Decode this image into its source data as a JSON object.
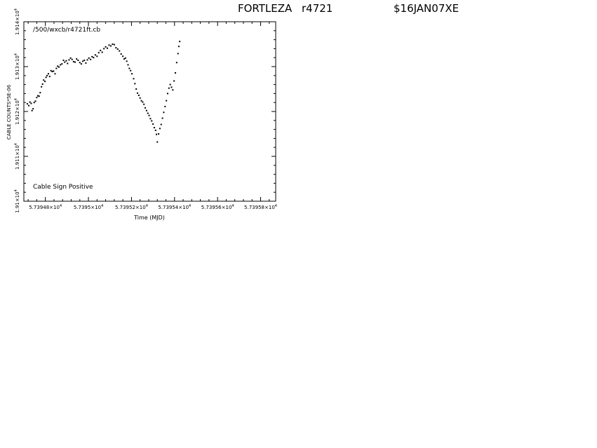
{
  "header": {
    "station": "FORTLEZA",
    "run": "r4721",
    "session": "$16JAN07XE"
  },
  "chart_data": {
    "type": "scatter",
    "title": "",
    "file_label": "/500/wxcb/r4721ft.cb",
    "annotation": "Cable Sign Positive",
    "xlabel": "Time (MJD)",
    "ylabel": "CABLE COUNTS*5E-06",
    "xlim": [
      57394.7,
      57395.87
    ],
    "ylim": [
      19100,
      19140
    ],
    "x_ticks": [
      {
        "value": 57394.8,
        "mantissa": "5.73948×10",
        "exp": "4"
      },
      {
        "value": 57395.0,
        "mantissa": "5.7395×10",
        "exp": "4"
      },
      {
        "value": 57395.2,
        "mantissa": "5.73952×10",
        "exp": "4"
      },
      {
        "value": 57395.4,
        "mantissa": "5.73954×10",
        "exp": "4"
      },
      {
        "value": 57395.6,
        "mantissa": "5.73956×10",
        "exp": "4"
      },
      {
        "value": 57395.8,
        "mantissa": "5.73958×10",
        "exp": "4"
      }
    ],
    "y_ticks": [
      {
        "value": 19100,
        "mantissa": "1.91×10",
        "exp": "4"
      },
      {
        "value": 19110,
        "mantissa": "1.911×10",
        "exp": "4"
      },
      {
        "value": 19120,
        "mantissa": "1.912×10",
        "exp": "4"
      },
      {
        "value": 19130,
        "mantissa": "1.913×10",
        "exp": "4"
      },
      {
        "value": 19140,
        "mantissa": "1.914×10",
        "exp": "4"
      }
    ],
    "grid": false,
    "series": [
      {
        "marker_color": "#000000",
        "points": [
          [
            57394.716,
            19121.7
          ],
          [
            57394.723,
            19121.3
          ],
          [
            57394.728,
            19122.1
          ],
          [
            57394.734,
            19121.8
          ],
          [
            57394.738,
            19120.2
          ],
          [
            57394.743,
            19120.6
          ],
          [
            57394.748,
            19122.0
          ],
          [
            57394.754,
            19122.3
          ],
          [
            57394.76,
            19123.1
          ],
          [
            57394.765,
            19123.5
          ],
          [
            57394.771,
            19123.4
          ],
          [
            57394.776,
            19124.2
          ],
          [
            57394.782,
            19125.5
          ],
          [
            57394.787,
            19126.1
          ],
          [
            57394.792,
            19127.0
          ],
          [
            57394.798,
            19126.7
          ],
          [
            57394.803,
            19127.6
          ],
          [
            57394.808,
            19128.0
          ],
          [
            57394.814,
            19128.4
          ],
          [
            57394.82,
            19127.8
          ],
          [
            57394.826,
            19129.1
          ],
          [
            57394.832,
            19128.9
          ],
          [
            57394.838,
            19129.0
          ],
          [
            57394.845,
            19128.4
          ],
          [
            57394.851,
            19129.6
          ],
          [
            57394.857,
            19130.1
          ],
          [
            57394.863,
            19129.9
          ],
          [
            57394.87,
            19130.4
          ],
          [
            57394.877,
            19130.6
          ],
          [
            57394.884,
            19131.4
          ],
          [
            57394.89,
            19131.0
          ],
          [
            57394.897,
            19131.3
          ],
          [
            57394.903,
            19130.7
          ],
          [
            57394.91,
            19131.5
          ],
          [
            57394.917,
            19131.9
          ],
          [
            57394.924,
            19131.6
          ],
          [
            57394.931,
            19131.1
          ],
          [
            57394.938,
            19131.0
          ],
          [
            57394.945,
            19131.7
          ],
          [
            57394.952,
            19131.4
          ],
          [
            57394.96,
            19130.9
          ],
          [
            57394.967,
            19130.6
          ],
          [
            57394.974,
            19131.2
          ],
          [
            57394.981,
            19131.4
          ],
          [
            57394.988,
            19130.8
          ],
          [
            57394.995,
            19131.5
          ],
          [
            57395.002,
            19131.9
          ],
          [
            57395.01,
            19131.6
          ],
          [
            57395.017,
            19132.2
          ],
          [
            57395.024,
            19132.0
          ],
          [
            57395.032,
            19132.6
          ],
          [
            57395.04,
            19132.3
          ],
          [
            57395.048,
            19133.1
          ],
          [
            57395.056,
            19133.6
          ],
          [
            57395.064,
            19133.2
          ],
          [
            57395.072,
            19134.0
          ],
          [
            57395.08,
            19134.4
          ],
          [
            57395.088,
            19134.1
          ],
          [
            57395.096,
            19134.8
          ],
          [
            57395.104,
            19134.6
          ],
          [
            57395.112,
            19135.0
          ],
          [
            57395.12,
            19134.9
          ],
          [
            57395.128,
            19134.2
          ],
          [
            57395.136,
            19133.9
          ],
          [
            57395.144,
            19133.5
          ],
          [
            57395.152,
            19132.8
          ],
          [
            57395.16,
            19132.3
          ],
          [
            57395.166,
            19131.7
          ],
          [
            57395.172,
            19131.9
          ],
          [
            57395.178,
            19131.2
          ],
          [
            57395.184,
            19130.4
          ],
          [
            57395.19,
            19129.6
          ],
          [
            57395.196,
            19129.1
          ],
          [
            57395.202,
            19128.4
          ],
          [
            57395.21,
            19127.3
          ],
          [
            57395.216,
            19126.2
          ],
          [
            57395.222,
            19125.0
          ],
          [
            57395.228,
            19124.1
          ],
          [
            57395.234,
            19123.6
          ],
          [
            57395.24,
            19123.0
          ],
          [
            57395.246,
            19122.4
          ],
          [
            57395.252,
            19122.1
          ],
          [
            57395.258,
            19121.6
          ],
          [
            57395.264,
            19120.8
          ],
          [
            57395.27,
            19120.2
          ],
          [
            57395.276,
            19119.6
          ],
          [
            57395.282,
            19119.1
          ],
          [
            57395.288,
            19118.4
          ],
          [
            57395.294,
            19117.9
          ],
          [
            57395.3,
            19117.2
          ],
          [
            57395.306,
            19116.4
          ],
          [
            57395.312,
            19115.8
          ],
          [
            57395.316,
            19114.9
          ],
          [
            57395.32,
            19113.2
          ],
          [
            57395.326,
            19115.0
          ],
          [
            57395.332,
            19116.2
          ],
          [
            57395.338,
            19117.1
          ],
          [
            57395.344,
            19118.5
          ],
          [
            57395.35,
            19119.8
          ],
          [
            57395.356,
            19121.1
          ],
          [
            57395.362,
            19122.4
          ],
          [
            57395.368,
            19124.0
          ],
          [
            57395.374,
            19125.2
          ],
          [
            57395.38,
            19126.0
          ],
          [
            57395.386,
            19125.4
          ],
          [
            57395.392,
            19124.8
          ],
          [
            57395.398,
            19126.8
          ],
          [
            57395.404,
            19128.6
          ],
          [
            57395.41,
            19130.9
          ],
          [
            57395.416,
            19132.9
          ],
          [
            57395.42,
            19134.5
          ],
          [
            57395.424,
            19135.6
          ]
        ]
      }
    ]
  }
}
